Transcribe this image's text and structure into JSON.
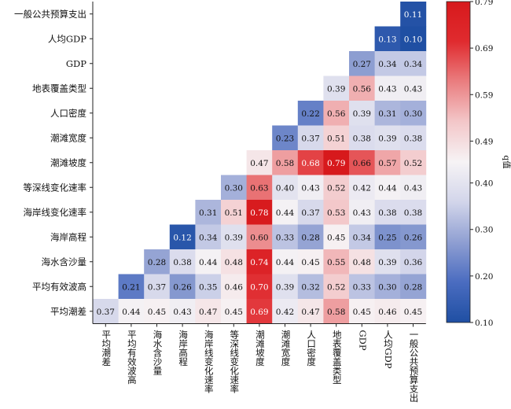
{
  "chart_data": {
    "type": "heatmap",
    "row_labels": [
      "一般公共预算支出",
      "人均GDP",
      "GDP",
      "地表覆盖类型",
      "人口密度",
      "潮滩宽度",
      "潮滩坡度",
      "等深线变化速率",
      "海岸线变化速率",
      "海岸高程",
      "海水含沙量",
      "平均有效波高",
      "平均潮差"
    ],
    "col_labels": [
      "平均潮差",
      "平均有效波高",
      "海水含沙量",
      "海岸高程",
      "海岸线变化速率",
      "等深线变化速率",
      "潮滩坡度",
      "潮滩宽度",
      "人口密度",
      "地表覆盖类型",
      "GDP",
      "人均GDP",
      "一般公共预算支出"
    ],
    "values": [
      [
        null,
        null,
        null,
        null,
        null,
        null,
        null,
        null,
        null,
        null,
        null,
        null,
        0.11
      ],
      [
        null,
        null,
        null,
        null,
        null,
        null,
        null,
        null,
        null,
        null,
        null,
        0.13,
        0.1
      ],
      [
        null,
        null,
        null,
        null,
        null,
        null,
        null,
        null,
        null,
        null,
        0.27,
        0.34,
        0.34
      ],
      [
        null,
        null,
        null,
        null,
        null,
        null,
        null,
        null,
        null,
        0.39,
        0.56,
        0.43,
        0.43
      ],
      [
        null,
        null,
        null,
        null,
        null,
        null,
        null,
        null,
        0.22,
        0.56,
        0.39,
        0.31,
        0.3
      ],
      [
        null,
        null,
        null,
        null,
        null,
        null,
        null,
        0.23,
        0.37,
        0.51,
        0.38,
        0.39,
        0.38
      ],
      [
        null,
        null,
        null,
        null,
        null,
        null,
        0.47,
        0.58,
        0.68,
        0.79,
        0.66,
        0.57,
        0.52
      ],
      [
        null,
        null,
        null,
        null,
        null,
        0.3,
        0.63,
        0.4,
        0.43,
        0.52,
        0.42,
        0.44,
        0.43
      ],
      [
        null,
        null,
        null,
        null,
        0.31,
        0.51,
        0.78,
        0.44,
        0.37,
        0.53,
        0.43,
        0.38,
        0.38
      ],
      [
        null,
        null,
        null,
        0.12,
        0.34,
        0.39,
        0.6,
        0.33,
        0.28,
        0.45,
        0.34,
        0.25,
        0.26
      ],
      [
        null,
        null,
        0.28,
        0.38,
        0.44,
        0.48,
        0.74,
        0.44,
        0.45,
        0.55,
        0.48,
        0.39,
        0.36
      ],
      [
        null,
        0.21,
        0.37,
        0.26,
        0.35,
        0.46,
        0.7,
        0.39,
        0.32,
        0.52,
        0.33,
        0.3,
        0.28
      ],
      [
        0.37,
        0.44,
        0.45,
        0.43,
        0.47,
        0.45,
        0.69,
        0.42,
        0.47,
        0.58,
        0.45,
        0.46,
        0.45
      ]
    ],
    "colorbar": {
      "label": "q值",
      "ticks": [
        "0.10",
        "0.20",
        "0.30",
        "0.40",
        "0.49",
        "0.59",
        "0.69",
        "0.79"
      ],
      "vmin": 0.1,
      "vmax": 0.79,
      "colormap": [
        "#1f4fa3",
        "#4a6cc0",
        "#8f9fd2",
        "#d2d5ea",
        "#f6f3f5",
        "#f3c7c9",
        "#ea7e80",
        "#e02b2f",
        "#d7191c"
      ]
    }
  }
}
